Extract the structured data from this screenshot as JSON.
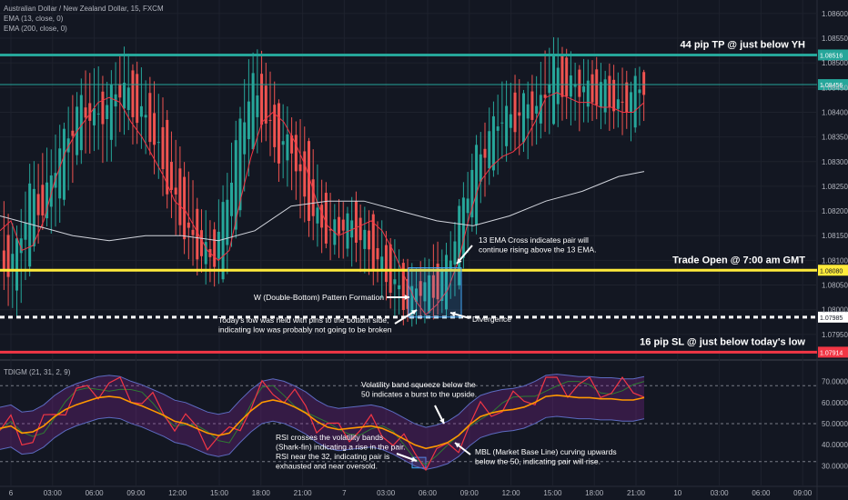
{
  "chart_data": {
    "type": "line",
    "title": "Australian Dollar / New Zealand Dollar, 15, FXCM",
    "price_ticks": [
      "1.08600",
      "1.08550",
      "1.08500",
      "1.08450",
      "1.08400",
      "1.08350",
      "1.08300",
      "1.08250",
      "1.08200",
      "1.08150",
      "1.08100",
      "1.08050",
      "1.08000",
      "1.07950"
    ],
    "price_ylim": [
      1.079,
      1.0862
    ],
    "time_ticks": [
      "6",
      "03:00",
      "06:00",
      "09:00",
      "12:00",
      "15:00",
      "18:00",
      "21:00",
      "7",
      "03:00",
      "06:00",
      "09:00",
      "12:00",
      "15:00",
      "18:00",
      "21:00",
      "10",
      "03:00",
      "06:00",
      "09:00"
    ],
    "legend": [
      "EMA (13, close, 0)",
      "EMA (200, close, 0)"
    ],
    "levels": [
      {
        "name": "take-profit",
        "price": 1.08516,
        "label": "1.08516",
        "color": "#26a69a",
        "text": "44 pip TP @ just below YH"
      },
      {
        "name": "current-price",
        "price": 1.08456,
        "label": "1.08456",
        "color": "#26a69a",
        "text": ""
      },
      {
        "name": "trade-open",
        "price": 1.0808,
        "label": "1.08080",
        "color": "#ffeb3b",
        "text": "Trade Open @ 7:00 am GMT"
      },
      {
        "name": "todays-low",
        "price": 1.07985,
        "label": "1.07985",
        "color": "#ffffff",
        "text": ""
      },
      {
        "name": "stop-loss",
        "price": 1.07914,
        "label": "1.07914",
        "color": "#f23645",
        "text": "16 pip SL @ just below today's low"
      }
    ],
    "series": [
      {
        "name": "EMA (13, close, 0)",
        "color": "#f23645",
        "points": [
          [
            0,
            1.0816
          ],
          [
            12,
            1.0818
          ],
          [
            24,
            1.0812
          ],
          [
            36,
            1.0813
          ],
          [
            48,
            1.0818
          ],
          [
            60,
            1.0826
          ],
          [
            72,
            1.0832
          ],
          [
            84,
            1.0836
          ],
          [
            96,
            1.0839
          ],
          [
            108,
            1.0842
          ],
          [
            120,
            1.0843
          ],
          [
            132,
            1.0842
          ],
          [
            144,
            1.0838
          ],
          [
            156,
            1.0835
          ],
          [
            168,
            1.0831
          ],
          [
            180,
            1.0827
          ],
          [
            192,
            1.0822
          ],
          [
            204,
            1.082
          ],
          [
            216,
            1.0816
          ],
          [
            228,
            1.0812
          ],
          [
            240,
            1.081
          ],
          [
            252,
            1.0812
          ],
          [
            264,
            1.0822
          ],
          [
            276,
            1.0831
          ],
          [
            288,
            1.0838
          ],
          [
            300,
            1.084
          ],
          [
            312,
            1.0838
          ],
          [
            324,
            1.0834
          ],
          [
            336,
            1.0829
          ],
          [
            348,
            1.0822
          ],
          [
            360,
            1.0817
          ],
          [
            372,
            1.0815
          ],
          [
            384,
            1.0816
          ],
          [
            396,
            1.0817
          ],
          [
            408,
            1.0818
          ],
          [
            420,
            1.0816
          ],
          [
            432,
            1.0812
          ],
          [
            444,
            1.0807
          ],
          [
            456,
            1.0802
          ],
          [
            468,
            1.0799
          ],
          [
            480,
            1.0801
          ],
          [
            492,
            1.0804
          ],
          [
            504,
            1.081
          ],
          [
            516,
            1.0819
          ],
          [
            528,
            1.0826
          ],
          [
            540,
            1.0829
          ],
          [
            552,
            1.0831
          ],
          [
            564,
            1.0832
          ],
          [
            576,
            1.0834
          ],
          [
            588,
            1.0838
          ],
          [
            600,
            1.0843
          ],
          [
            612,
            1.0844
          ],
          [
            624,
            1.0843
          ],
          [
            636,
            1.0842
          ],
          [
            648,
            1.0842
          ],
          [
            660,
            1.0841
          ],
          [
            672,
            1.0841
          ],
          [
            684,
            1.084
          ],
          [
            696,
            1.084
          ],
          [
            708,
            1.0842
          ]
        ]
      },
      {
        "name": "EMA (200, close, 0)",
        "color": "#d1d4dc",
        "points": [
          [
            0,
            1.0819
          ],
          [
            40,
            1.0817
          ],
          [
            80,
            1.0815
          ],
          [
            120,
            1.0814
          ],
          [
            160,
            1.0815
          ],
          [
            200,
            1.0815
          ],
          [
            240,
            1.0814
          ],
          [
            280,
            1.0816
          ],
          [
            320,
            1.0821
          ],
          [
            360,
            1.0822
          ],
          [
            400,
            1.0822
          ],
          [
            440,
            1.082
          ],
          [
            480,
            1.0818
          ],
          [
            520,
            1.0817
          ],
          [
            560,
            1.0819
          ],
          [
            600,
            1.0822
          ],
          [
            640,
            1.0824
          ],
          [
            680,
            1.0827
          ],
          [
            708,
            1.0828
          ]
        ]
      }
    ],
    "candles": [
      [
        1.0812,
        1.082,
        1.0804,
        1.0808
      ],
      [
        1.0808,
        1.0815,
        1.08,
        1.0812
      ],
      [
        1.0812,
        1.0828,
        1.081,
        1.0824
      ],
      [
        1.0824,
        1.083,
        1.0818,
        1.082
      ],
      [
        1.082,
        1.0834,
        1.0817,
        1.0831
      ],
      [
        1.0831,
        1.084,
        1.0826,
        1.0836
      ],
      [
        1.0836,
        1.0846,
        1.0832,
        1.0842
      ],
      [
        1.0842,
        1.0848,
        1.0834,
        1.0838
      ],
      [
        1.0838,
        1.0845,
        1.083,
        1.0842
      ],
      [
        1.0842,
        1.0852,
        1.0838,
        1.0846
      ],
      [
        1.0846,
        1.0849,
        1.0835,
        1.084
      ],
      [
        1.084,
        1.0846,
        1.0833,
        1.0838
      ],
      [
        1.0838,
        1.0843,
        1.0826,
        1.083
      ],
      [
        1.083,
        1.0834,
        1.0818,
        1.0822
      ],
      [
        1.0822,
        1.0828,
        1.0812,
        1.0815
      ],
      [
        1.0815,
        1.082,
        1.0808,
        1.0812
      ],
      [
        1.0812,
        1.0816,
        1.0806,
        1.081
      ],
      [
        1.081,
        1.0826,
        1.0808,
        1.0822
      ],
      [
        1.0822,
        1.084,
        1.082,
        1.0836
      ],
      [
        1.0836,
        1.0852,
        1.0832,
        1.0846
      ],
      [
        1.0846,
        1.085,
        1.0836,
        1.0838
      ],
      [
        1.0838,
        1.0842,
        1.0828,
        1.0832
      ],
      [
        1.0832,
        1.0838,
        1.0826,
        1.0834
      ],
      [
        1.0834,
        1.0836,
        1.0818,
        1.0822
      ],
      [
        1.0822,
        1.0828,
        1.0814,
        1.0818
      ],
      [
        1.0818,
        1.0822,
        1.0812,
        1.0815
      ],
      [
        1.0815,
        1.082,
        1.0812,
        1.0818
      ],
      [
        1.0818,
        1.0822,
        1.081,
        1.0816
      ],
      [
        1.0816,
        1.0818,
        1.0808,
        1.0812
      ],
      [
        1.0812,
        1.0816,
        1.0804,
        1.0808
      ],
      [
        1.0808,
        1.0812,
        1.08,
        1.0804
      ],
      [
        1.0804,
        1.0808,
        1.0798,
        1.0801
      ],
      [
        1.0801,
        1.0808,
        1.0799,
        1.0806
      ],
      [
        1.0806,
        1.0812,
        1.08,
        1.0803
      ],
      [
        1.0803,
        1.0812,
        1.0801,
        1.081
      ],
      [
        1.081,
        1.0822,
        1.0808,
        1.082
      ],
      [
        1.082,
        1.0832,
        1.0818,
        1.083
      ],
      [
        1.083,
        1.0838,
        1.0826,
        1.0834
      ],
      [
        1.0834,
        1.0844,
        1.083,
        1.084
      ],
      [
        1.084,
        1.0846,
        1.0834,
        1.0838
      ],
      [
        1.0838,
        1.0844,
        1.0832,
        1.0842
      ],
      [
        1.0842,
        1.0848,
        1.0836,
        1.084
      ],
      [
        1.084,
        1.0854,
        1.0838,
        1.085
      ],
      [
        1.085,
        1.0852,
        1.084,
        1.0844
      ],
      [
        1.0844,
        1.0848,
        1.0838,
        1.0846
      ],
      [
        1.0846,
        1.085,
        1.084,
        1.0843
      ],
      [
        1.0843,
        1.0848,
        1.0838,
        1.0845
      ],
      [
        1.0845,
        1.0848,
        1.0838,
        1.084
      ],
      [
        1.084,
        1.0846,
        1.0836,
        1.0844
      ],
      [
        1.0844,
        1.0848,
        1.084,
        1.0846
      ]
    ],
    "indicator": {
      "name": "TDIGM (21, 31, 2, 9)",
      "ticks": [
        "70.0000",
        "60.0000",
        "50.0000",
        "40.0000",
        "30.0000"
      ],
      "ylim": [
        25,
        75
      ],
      "levels": [
        68,
        50,
        32
      ]
    },
    "annotations": [
      {
        "name": "ema-cross-note",
        "lines": [
          "13 EMA Cross indicates pair will",
          "continue rising above the 13 EMA."
        ]
      },
      {
        "name": "w-pattern-note",
        "lines": [
          "W (Double-Bottom) Pattern Formation"
        ]
      },
      {
        "name": "todays-low-note",
        "lines": [
          "Today's low was held with pins to the bottom side,",
          "indicating low was probably not going to be broken"
        ]
      },
      {
        "name": "divergence-note",
        "lines": [
          "Divergence"
        ]
      },
      {
        "name": "volatility-note",
        "lines": [
          "Volatility band squeeze below the",
          "50 indicates a burst to the upside."
        ]
      },
      {
        "name": "rsi-note",
        "lines": [
          "RSI crosses the volatility bands",
          "(Shark-fin) indicating a rise in the pair.",
          "RSI near the 32, indicating pair is",
          "exhausted and near oversold."
        ]
      },
      {
        "name": "mbl-note",
        "lines": [
          "MBL (Market Base Line) curving upwards",
          "below the 50, indicating pair will rise."
        ]
      }
    ]
  }
}
